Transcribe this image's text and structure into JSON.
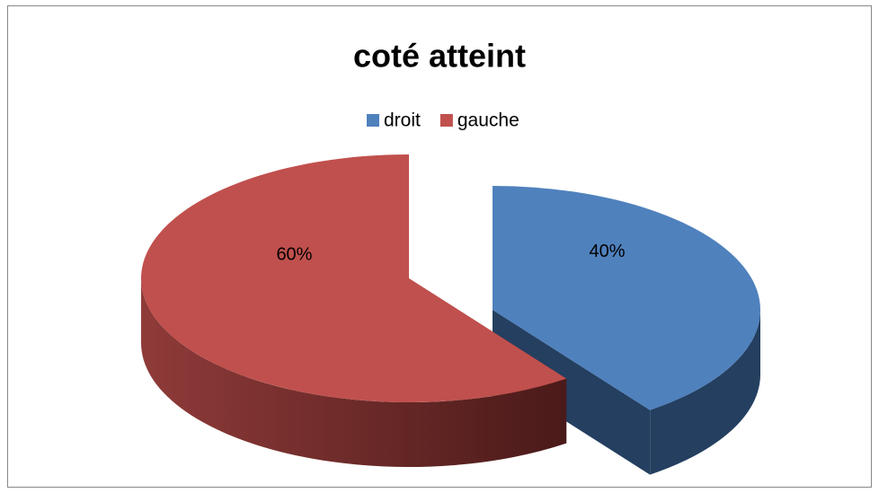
{
  "chart_data": {
    "type": "pie",
    "title": "coté atteint",
    "categories": [
      "droit",
      "gauche"
    ],
    "values": [
      40,
      60
    ],
    "value_labels": [
      "40%",
      "60%"
    ],
    "colors": [
      "#4f81bd",
      "#c0504d"
    ],
    "legend": "top"
  }
}
